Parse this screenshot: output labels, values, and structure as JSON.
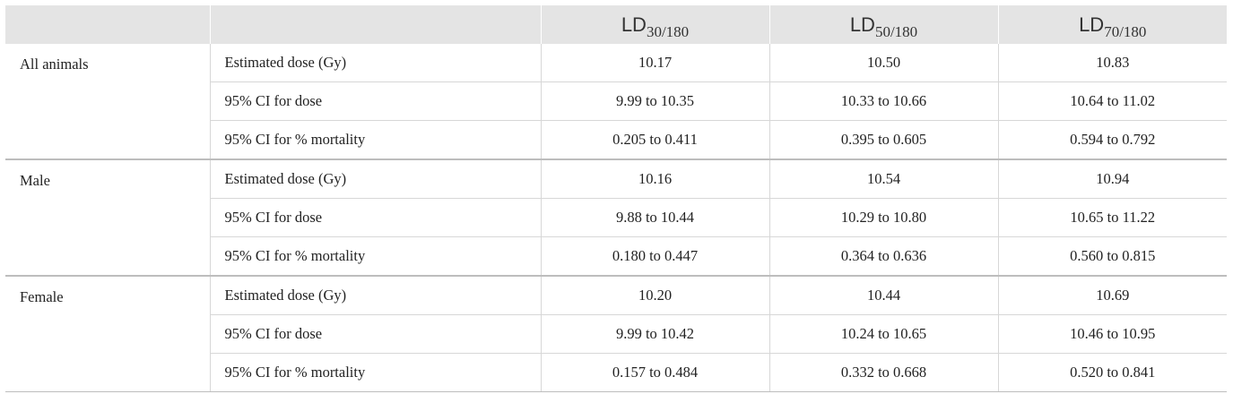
{
  "header": {
    "columns": [
      {
        "base": "LD",
        "sub": "30/180"
      },
      {
        "base": "LD",
        "sub": "50/180"
      },
      {
        "base": "LD",
        "sub": "70/180"
      }
    ]
  },
  "groups": [
    {
      "label": "All animals",
      "rows": [
        {
          "metric": "Estimated dose (Gy)",
          "values": [
            "10.17",
            "10.50",
            "10.83"
          ]
        },
        {
          "metric": "95% CI for dose",
          "values": [
            "9.99 to 10.35",
            "10.33 to 10.66",
            "10.64 to 11.02"
          ]
        },
        {
          "metric": "95% CI for % mortality",
          "values": [
            "0.205 to 0.411",
            "0.395 to 0.605",
            "0.594 to 0.792"
          ]
        }
      ]
    },
    {
      "label": "Male",
      "rows": [
        {
          "metric": "Estimated dose (Gy)",
          "values": [
            "10.16",
            "10.54",
            "10.94"
          ]
        },
        {
          "metric": "95% CI for dose",
          "values": [
            "9.88 to 10.44",
            "10.29 to 10.80",
            "10.65 to 11.22"
          ]
        },
        {
          "metric": "95% CI for % mortality",
          "values": [
            "0.180 to 0.447",
            "0.364 to 0.636",
            "0.560 to 0.815"
          ]
        }
      ]
    },
    {
      "label": "Female",
      "rows": [
        {
          "metric": "Estimated dose (Gy)",
          "values": [
            "10.20",
            "10.44",
            "10.69"
          ]
        },
        {
          "metric": "95% CI for dose",
          "values": [
            "9.99 to 10.42",
            "10.24 to 10.65",
            "10.46 to 10.95"
          ]
        },
        {
          "metric": "95% CI for % mortality",
          "values": [
            "0.157 to 0.484",
            "0.332 to 0.668",
            "0.520 to 0.841"
          ]
        }
      ]
    }
  ]
}
